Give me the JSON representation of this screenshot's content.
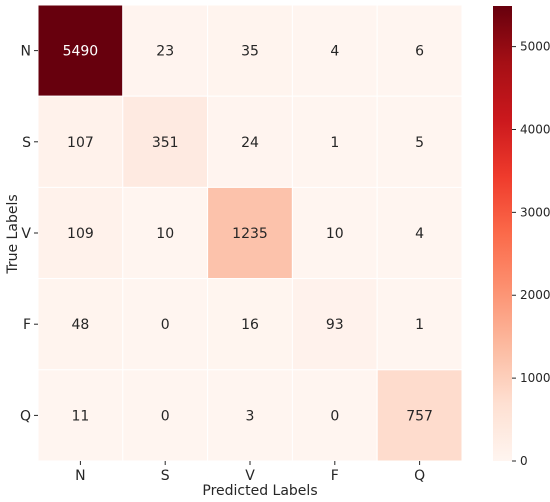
{
  "chart_data": {
    "type": "heatmap",
    "title": "",
    "xlabel": "Predicted Labels",
    "ylabel": "True Labels",
    "x_categories": [
      "N",
      "S",
      "V",
      "F",
      "Q"
    ],
    "y_categories": [
      "N",
      "S",
      "V",
      "F",
      "Q"
    ],
    "values": [
      [
        5490,
        23,
        35,
        4,
        6
      ],
      [
        107,
        351,
        24,
        1,
        5
      ],
      [
        109,
        10,
        1235,
        10,
        4
      ],
      [
        48,
        0,
        16,
        93,
        1
      ],
      [
        11,
        0,
        3,
        0,
        757
      ]
    ],
    "colorbar": {
      "min": 0,
      "max": 5490,
      "ticks": [
        0,
        1000,
        2000,
        3000,
        4000,
        5000
      ],
      "colormap": "Reds"
    },
    "colors": {
      "low": "#fff5f0",
      "high": "#67000d",
      "dark_text": "#262626",
      "light_text": "#ffffff"
    }
  }
}
